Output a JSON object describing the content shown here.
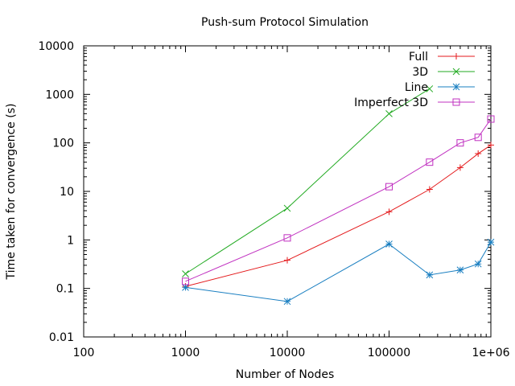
{
  "chart_data": {
    "type": "line",
    "title": "Push-sum Protocol Simulation",
    "xlabel": "Number of Nodes",
    "ylabel": "Time taken for convergence (s)",
    "xscale": "log",
    "yscale": "log",
    "xlim": [
      100,
      1000000
    ],
    "ylim": [
      0.01,
      10000
    ],
    "grid": false,
    "legend_position": "top-right",
    "x_ticks": [
      {
        "value": 100,
        "label": "100"
      },
      {
        "value": 1000,
        "label": "1000"
      },
      {
        "value": 10000,
        "label": "10000"
      },
      {
        "value": 100000,
        "label": "100000"
      },
      {
        "value": 1000000,
        "label": "1e+06"
      }
    ],
    "y_ticks": [
      {
        "value": 0.01,
        "label": "0.01"
      },
      {
        "value": 0.1,
        "label": "0.1"
      },
      {
        "value": 1,
        "label": "1"
      },
      {
        "value": 10,
        "label": "10"
      },
      {
        "value": 100,
        "label": "100"
      },
      {
        "value": 1000,
        "label": "1000"
      },
      {
        "value": 10000,
        "label": "10000"
      }
    ],
    "series": [
      {
        "name": "Full",
        "color": "#e41a1c",
        "marker": "plus",
        "x": [
          1000,
          10000,
          100000,
          250000,
          500000,
          750000,
          1000000
        ],
        "y": [
          0.11,
          0.38,
          3.8,
          11,
          31,
          60,
          90
        ]
      },
      {
        "name": "3D",
        "color": "#22aa22",
        "marker": "cross",
        "x": [
          1000,
          10000,
          100000,
          250000
        ],
        "y": [
          0.2,
          4.5,
          400,
          1300
        ]
      },
      {
        "name": "Line",
        "color": "#1a7fc1",
        "marker": "star",
        "x": [
          1000,
          10000,
          100000,
          250000,
          500000,
          750000,
          1000000
        ],
        "y": [
          0.105,
          0.054,
          0.82,
          0.19,
          0.24,
          0.32,
          0.9
        ]
      },
      {
        "name": "Imperfect 3D",
        "color": "#c030c0",
        "marker": "box",
        "x": [
          1000,
          10000,
          100000,
          250000,
          500000,
          750000,
          1000000
        ],
        "y": [
          0.14,
          1.1,
          12.5,
          40,
          100,
          130,
          310
        ]
      }
    ]
  }
}
